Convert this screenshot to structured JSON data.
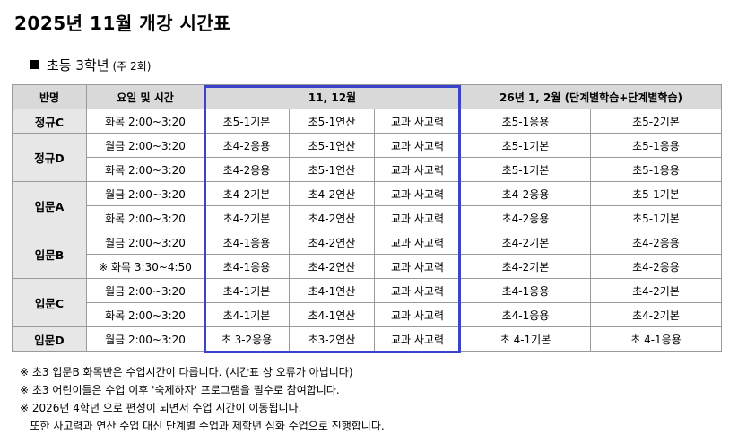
{
  "title": "2025년 11월 개강 시간표",
  "subtitle": {
    "label": "초등 3학년",
    "note": "(주 2회)"
  },
  "table": {
    "headers": [
      "반명",
      "요일 및 시간",
      "11, 12월",
      "26년 1, 2월 (단계별학습+단계별학습)"
    ],
    "groups": [
      {
        "name": "정규C",
        "rows": [
          {
            "time": "화목 2:00~3:20",
            "c1": "초5-1기본",
            "c2": "초5-1연산",
            "c3": "교과 사고력",
            "c4": "초5-1응용",
            "c5": "초5-2기본"
          }
        ]
      },
      {
        "name": "정규D",
        "rows": [
          {
            "time": "월금 2:00~3:20",
            "c1": "초4-2응용",
            "c2": "초5-1연산",
            "c3": "교과 사고력",
            "c4": "초5-1기본",
            "c5": "초5-1응용"
          },
          {
            "time": "화목 2:00~3:20",
            "c1": "초4-2응용",
            "c2": "초5-1연산",
            "c3": "교과 사고력",
            "c4": "초5-1기본",
            "c5": "초5-1응용"
          }
        ]
      },
      {
        "name": "입문A",
        "rows": [
          {
            "time": "월금 2:00~3:20",
            "c1": "초4-2기본",
            "c2": "초4-2연산",
            "c3": "교과 사고력",
            "c4": "초4-2응용",
            "c5": "초5-1기본"
          },
          {
            "time": "화목 2:00~3:20",
            "c1": "초4-2기본",
            "c2": "초4-2연산",
            "c3": "교과 사고력",
            "c4": "초4-2응용",
            "c5": "초5-1기본"
          }
        ]
      },
      {
        "name": "입문B",
        "rows": [
          {
            "time": "월금 2:00~3:20",
            "c1": "초4-1응용",
            "c2": "초4-2연산",
            "c3": "교과 사고력",
            "c4": "초4-2기본",
            "c5": "초4-2응용"
          },
          {
            "time": "※ 화목 3:30~4:50",
            "c1": "초4-1응용",
            "c2": "초4-2연산",
            "c3": "교과 사고력",
            "c4": "초4-2기본",
            "c5": "초4-2응용"
          }
        ]
      },
      {
        "name": "입문C",
        "rows": [
          {
            "time": "월금 2:00~3:20",
            "c1": "초4-1기본",
            "c2": "초4-1연산",
            "c3": "교과 사고력",
            "c4": "초4-1응용",
            "c5": "초4-2기본"
          },
          {
            "time": "화목 2:00~3:20",
            "c1": "초4-1기본",
            "c2": "초4-1연산",
            "c3": "교과 사고력",
            "c4": "초4-1응용",
            "c5": "초4-2기본"
          }
        ]
      },
      {
        "name": "입문D",
        "rows": [
          {
            "time": "월금 2:00~3:20",
            "c1": "초 3-2응용",
            "c2": "초3-2연산",
            "c3": "교과 사고력",
            "c4": "초 4-1기본",
            "c5": "초 4-1응용"
          }
        ]
      }
    ]
  },
  "highlight_color": "#3b43c9",
  "notes": [
    "※ 초3 입문B 화목반은 수업시간이 다릅니다. (시간표 상 오류가 아닙니다)",
    "※ 초3 어린이들은 수업 이후 '숙제하자' 프로그램을 필수로 참여합니다.",
    "※ 2026년 4학년 으로 편성이 되면서 수업 시간이 이동됩니다.",
    "   또한 사고력과 연산 수업 대신 단계별 수업과 제학년 심화 수업으로 진행합니다."
  ]
}
